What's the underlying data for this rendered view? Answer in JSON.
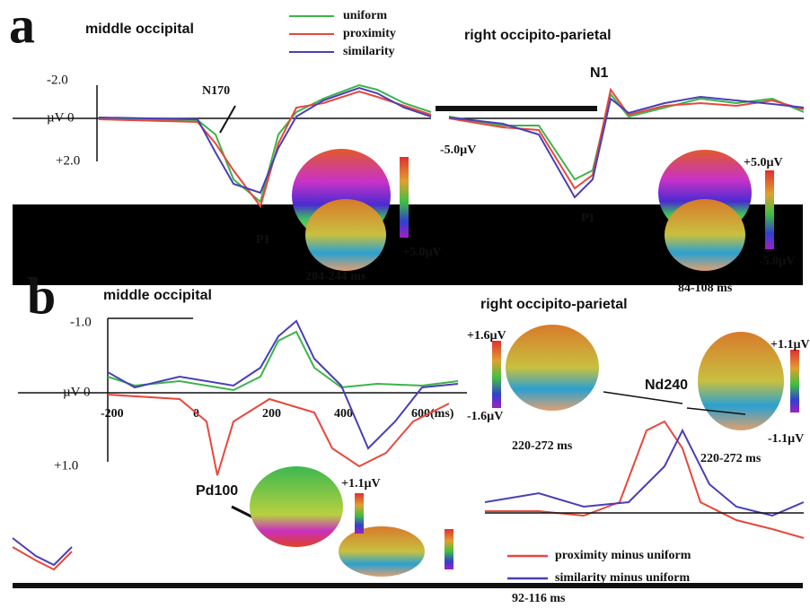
{
  "panel_a": {
    "label": "a",
    "left_title": "middle occipital",
    "right_title": "right occipito-parietal",
    "legend": [
      "uniform",
      "proximity",
      "similarity"
    ],
    "y_top": "-2.0",
    "y_zero": "µV 0",
    "y_bottom": "+2.0",
    "components": [
      "N170",
      "N1",
      "P1",
      "P1"
    ],
    "scale_left": [
      "-5.0µV",
      "+5.0µV"
    ],
    "scale_right": [
      "+5.0µV",
      "-5.0µV"
    ],
    "times": [
      "204-244 ms",
      "84-108 ms"
    ]
  },
  "panel_b": {
    "label": "b",
    "left_title": "middle occipital",
    "right_title": "right occipito-parietal",
    "y_top": "-1.0",
    "y_zero": "µV 0",
    "y_bottom": "+1.0",
    "x_ticks": [
      "-200",
      "0",
      "200",
      "400",
      "600(ms)"
    ],
    "components": [
      "Pd100",
      "Nd240"
    ],
    "scale_left": [
      "+1.1µV"
    ],
    "scale_mid": [
      "+1.6µV",
      "-1.6µV"
    ],
    "scale_right": [
      "+1.1µV",
      "-1.1µV"
    ],
    "times": [
      "92-116 ms",
      "220-272 ms",
      "220-272 ms"
    ],
    "legend": [
      "proximity minus uniform",
      "similarity minus uniform"
    ]
  }
}
